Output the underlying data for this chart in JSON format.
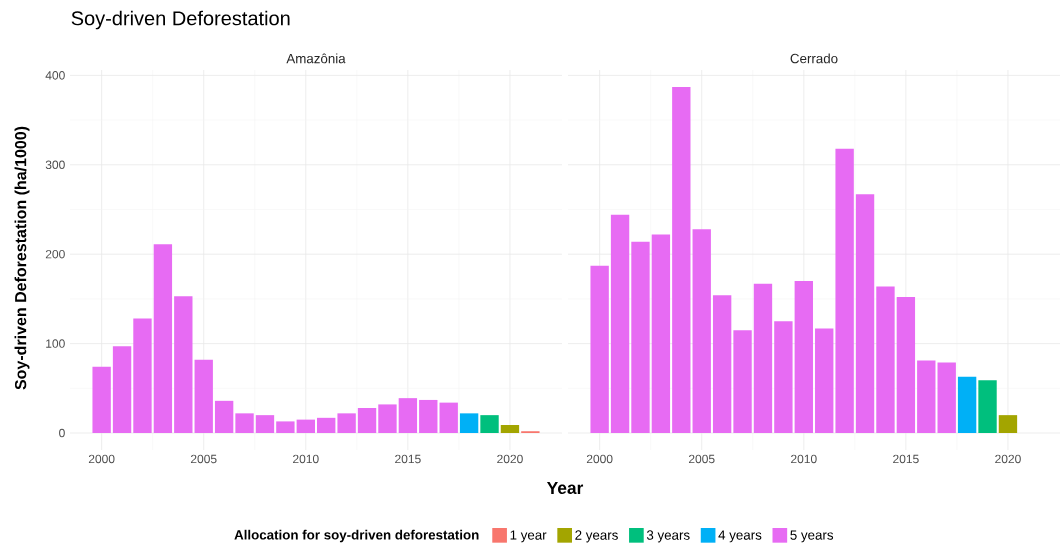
{
  "chart_data": [
    {
      "type": "bar",
      "title": "Soy-driven Deforestation",
      "subtitle": "Amazônia",
      "xlabel": "Year",
      "ylabel": "Soy-driven Deforestation (ha/1000)",
      "legend_title": "Allocation for soy-driven deforestation",
      "legend": "bottom",
      "grid": true,
      "x": [
        2000,
        2001,
        2002,
        2003,
        2004,
        2005,
        2006,
        2007,
        2008,
        2009,
        2010,
        2011,
        2012,
        2013,
        2014,
        2015,
        2016,
        2017,
        2018,
        2019,
        2020,
        2021
      ],
      "xlim": [
        1998.45,
        2022.55
      ],
      "xticks": [
        2000,
        2005,
        2010,
        2015,
        2020
      ],
      "ylim": [
        -19,
        406
      ],
      "yticks": [
        0,
        100,
        200,
        300,
        400
      ],
      "series": [
        {
          "name": "1 year",
          "color": "#f8766d",
          "values": [
            null,
            null,
            null,
            null,
            null,
            null,
            null,
            null,
            null,
            null,
            null,
            null,
            null,
            null,
            null,
            null,
            null,
            null,
            null,
            null,
            null,
            2
          ]
        },
        {
          "name": "2 years",
          "color": "#a3a500",
          "values": [
            null,
            null,
            null,
            null,
            null,
            null,
            null,
            null,
            null,
            null,
            null,
            null,
            null,
            null,
            null,
            null,
            null,
            null,
            null,
            null,
            9,
            null
          ]
        },
        {
          "name": "3 years",
          "color": "#00bf7d",
          "values": [
            null,
            null,
            null,
            null,
            null,
            null,
            null,
            null,
            null,
            null,
            null,
            null,
            null,
            null,
            null,
            null,
            null,
            null,
            null,
            20,
            null,
            null
          ]
        },
        {
          "name": "4 years",
          "color": "#00b0f6",
          "values": [
            null,
            null,
            null,
            null,
            null,
            null,
            null,
            null,
            null,
            null,
            null,
            null,
            null,
            null,
            null,
            null,
            null,
            null,
            22,
            null,
            null,
            null
          ]
        },
        {
          "name": "5 years",
          "color": "#e76bf3",
          "values": [
            74,
            97,
            128,
            211,
            153,
            82,
            36,
            22,
            20,
            13,
            15,
            17,
            22,
            28,
            32,
            39,
            37,
            34,
            null,
            null,
            null,
            null
          ]
        }
      ]
    },
    {
      "type": "bar",
      "subtitle": "Cerrado",
      "grid": true,
      "tick_labels": "x",
      "x": [
        2000,
        2001,
        2002,
        2003,
        2004,
        2005,
        2006,
        2007,
        2008,
        2009,
        2010,
        2011,
        2012,
        2013,
        2014,
        2015,
        2016,
        2017,
        2018,
        2019,
        2020
      ],
      "xlim": [
        1998.45,
        2022.55
      ],
      "xticks": [
        2000,
        2005,
        2010,
        2015,
        2020
      ],
      "ylim": [
        -19,
        406
      ],
      "yticks": [
        0,
        100,
        200,
        300,
        400
      ],
      "series": [
        {
          "color": "#a3a500",
          "values": [
            null,
            null,
            null,
            null,
            null,
            null,
            null,
            null,
            null,
            null,
            null,
            null,
            null,
            null,
            null,
            null,
            null,
            null,
            null,
            null,
            20
          ]
        },
        {
          "color": "#00bf7d",
          "values": [
            null,
            null,
            null,
            null,
            null,
            null,
            null,
            null,
            null,
            null,
            null,
            null,
            null,
            null,
            null,
            null,
            null,
            null,
            null,
            59,
            null
          ]
        },
        {
          "color": "#00b0f6",
          "values": [
            null,
            null,
            null,
            null,
            null,
            null,
            null,
            null,
            null,
            null,
            null,
            null,
            null,
            null,
            null,
            null,
            null,
            null,
            63,
            null,
            null
          ]
        },
        {
          "color": "#e76bf3",
          "values": [
            187,
            244,
            214,
            222,
            387,
            228,
            154,
            115,
            167,
            125,
            170,
            117,
            318,
            267,
            164,
            152,
            81,
            79,
            null,
            null,
            null
          ]
        }
      ]
    }
  ]
}
